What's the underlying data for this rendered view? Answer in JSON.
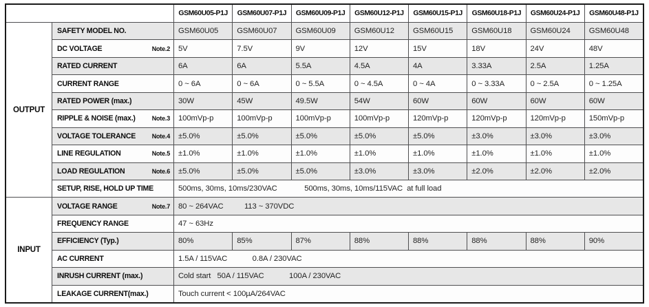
{
  "header": {
    "corner": "",
    "models": [
      "GSM60U05-P1J",
      "GSM60U07-P1J",
      "GSM60U09-P1J",
      "GSM60U12-P1J",
      "GSM60U15-P1J",
      "GSM60U18-P1J",
      "GSM60U24-P1J",
      "GSM60U48-P1J"
    ]
  },
  "colors": {
    "stripe_gray": "#e7e7e7",
    "row_white": "#fdfdfd",
    "grid_line": "#4e4e50",
    "outer_border": "#1a1a1a",
    "text": "#0c0c0c"
  },
  "sections": [
    {
      "label": "OUTPUT",
      "rows": [
        {
          "name": "SAFETY MODEL NO.",
          "note": "",
          "values": [
            "GSM60U05",
            "GSM60U07",
            "GSM60U09",
            "GSM60U12",
            "GSM60U15",
            "GSM60U18",
            "GSM60U24",
            "GSM60U48"
          ]
        },
        {
          "name": "DC VOLTAGE",
          "note": "Note.2",
          "values": [
            "5V",
            "7.5V",
            "9V",
            "12V",
            "15V",
            "18V",
            "24V",
            "48V"
          ]
        },
        {
          "name": "RATED CURRENT",
          "note": "",
          "values": [
            "6A",
            "6A",
            "5.5A",
            "4.5A",
            "4A",
            "3.33A",
            "2.5A",
            "1.25A"
          ]
        },
        {
          "name": "CURRENT RANGE",
          "note": "",
          "values": [
            "0 ~ 6A",
            "0 ~ 6A",
            "0 ~ 5.5A",
            "0 ~ 4.5A",
            "0 ~ 4A",
            "0 ~ 3.33A",
            "0 ~ 2.5A",
            "0 ~ 1.25A"
          ]
        },
        {
          "name": "RATED POWER (max.)",
          "note": "",
          "values": [
            "30W",
            "45W",
            "49.5W",
            "54W",
            "60W",
            "60W",
            "60W",
            "60W"
          ]
        },
        {
          "name": "RIPPLE & NOISE (max.)",
          "note": "Note.3",
          "values": [
            "100mVp-p",
            "100mVp-p",
            "100mVp-p",
            "100mVp-p",
            "120mVp-p",
            "120mVp-p",
            "120mVp-p",
            "150mVp-p"
          ]
        },
        {
          "name": "VOLTAGE TOLERANCE",
          "note": "Note.4",
          "values": [
            "±5.0%",
            "±5.0%",
            "±5.0%",
            "±5.0%",
            "±5.0%",
            "±3.0%",
            "±3.0%",
            "±3.0%"
          ]
        },
        {
          "name": "LINE REGULATION",
          "note": "Note.5",
          "values": [
            "±1.0%",
            "±1.0%",
            "±1.0%",
            "±1.0%",
            "±1.0%",
            "±1.0%",
            "±1.0%",
            "±1.0%"
          ]
        },
        {
          "name": "LOAD REGULATION",
          "note": "Note.6",
          "values": [
            "±5.0%",
            "±5.0%",
            "±5.0%",
            "±3.0%",
            "±3.0%",
            "±2.0%",
            "±2.0%",
            "±2.0%"
          ]
        },
        {
          "name": "SETUP, RISE, HOLD UP TIME",
          "note": "",
          "text": "500ms, 30ms, 10ms/230VAC             500ms, 30ms, 10ms/115VAC  at full load"
        }
      ]
    },
    {
      "label": "INPUT",
      "rows": [
        {
          "name": "VOLTAGE RANGE",
          "note": "Note.7",
          "text": "80 ~ 264VAC          113 ~ 370VDC"
        },
        {
          "name": "FREQUENCY RANGE",
          "note": "",
          "text": "47 ~ 63Hz"
        },
        {
          "name": "EFFICIENCY (Typ.)",
          "note": "",
          "values": [
            "80%",
            "85%",
            "87%",
            "88%",
            "88%",
            "88%",
            "88%",
            "90%"
          ]
        },
        {
          "name": "AC CURRENT",
          "note": "",
          "text": "1.5A / 115VAC            0.8A / 230VAC"
        },
        {
          "name": "INRUSH CURRENT (max.)",
          "note": "",
          "text": "Cold start   50A / 115VAC            100A / 230VAC"
        },
        {
          "name": "LEAKAGE CURRENT(max.)",
          "note": "",
          "text": "Touch current < 100µA/264VAC"
        }
      ]
    }
  ]
}
